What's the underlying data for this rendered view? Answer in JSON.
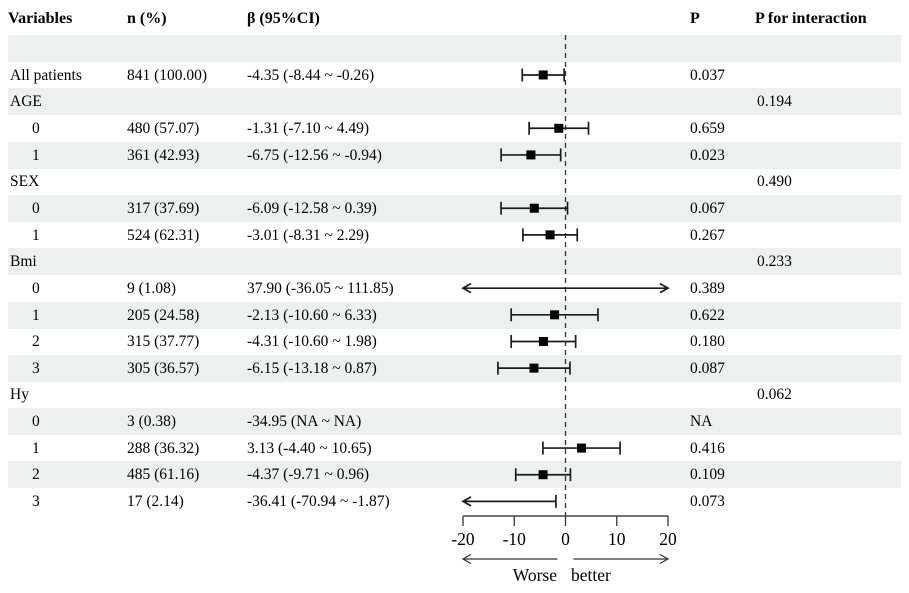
{
  "columns": {
    "variables": "Variables",
    "n": "n (%)",
    "beta": "β (95%CI)",
    "p": "P",
    "p_interaction": "P for interaction"
  },
  "axis": {
    "ticks": [
      -20,
      -10,
      0,
      10,
      20
    ],
    "left_label": "Worse",
    "right_label": "better"
  },
  "colors": {
    "stripe": "#edf1ee",
    "line": "#1c1c1c",
    "dashed_reference": "#333333"
  },
  "chart_data": {
    "type": "forest",
    "title": "",
    "xlabel": "",
    "xlim": [
      -20,
      20
    ],
    "reference_value": 0,
    "legend": "none",
    "direction_labels": {
      "left": "Worse",
      "right": "better"
    },
    "rows": [
      {
        "kind": "spacer"
      },
      {
        "kind": "data",
        "label": "All patients",
        "indent": 0,
        "n": "841 (100.00)",
        "beta": "-4.35 (-8.44 ~ -0.26)",
        "p": "0.037",
        "est": -4.35,
        "lo": -8.44,
        "hi": -0.26
      },
      {
        "kind": "group",
        "label": "AGE",
        "p_interaction": "0.194"
      },
      {
        "kind": "data",
        "label": "0",
        "indent": 1,
        "n": "480 (57.07)",
        "beta": "-1.31 (-7.10 ~ 4.49)",
        "p": "0.659",
        "est": -1.31,
        "lo": -7.1,
        "hi": 4.49
      },
      {
        "kind": "data",
        "label": "1",
        "indent": 1,
        "n": "361 (42.93)",
        "beta": "-6.75 (-12.56 ~ -0.94)",
        "p": "0.023",
        "est": -6.75,
        "lo": -12.56,
        "hi": -0.94
      },
      {
        "kind": "group",
        "label": "SEX",
        "p_interaction": "0.490"
      },
      {
        "kind": "data",
        "label": "0",
        "indent": 1,
        "n": "317 (37.69)",
        "beta": "-6.09 (-12.58 ~ 0.39)",
        "p": "0.067",
        "est": -6.09,
        "lo": -12.58,
        "hi": 0.39
      },
      {
        "kind": "data",
        "label": "1",
        "indent": 1,
        "n": "524 (62.31)",
        "beta": "-3.01 (-8.31 ~ 2.29)",
        "p": "0.267",
        "est": -3.01,
        "lo": -8.31,
        "hi": 2.29
      },
      {
        "kind": "group",
        "label": "Bmi",
        "p_interaction": "0.233"
      },
      {
        "kind": "data",
        "label": "0",
        "indent": 1,
        "n": "9 (1.08)",
        "beta": "37.90 (-36.05 ~ 111.85)",
        "p": "0.389",
        "est": 37.9,
        "lo": -36.05,
        "hi": 111.85
      },
      {
        "kind": "data",
        "label": "1",
        "indent": 1,
        "n": "205 (24.58)",
        "beta": "-2.13 (-10.60 ~ 6.33)",
        "p": "0.622",
        "est": -2.13,
        "lo": -10.6,
        "hi": 6.33
      },
      {
        "kind": "data",
        "label": "2",
        "indent": 1,
        "n": "315 (37.77)",
        "beta": "-4.31 (-10.60 ~ 1.98)",
        "p": "0.180",
        "est": -4.31,
        "lo": -10.6,
        "hi": 1.98
      },
      {
        "kind": "data",
        "label": "3",
        "indent": 1,
        "n": "305 (36.57)",
        "beta": "-6.15 (-13.18 ~ 0.87)",
        "p": "0.087",
        "est": -6.15,
        "lo": -13.18,
        "hi": 0.87
      },
      {
        "kind": "group",
        "label": "Hy",
        "p_interaction": "0.062"
      },
      {
        "kind": "data",
        "label": "0",
        "indent": 1,
        "n": "3 (0.38)",
        "beta": "-34.95 (NA ~ NA)",
        "p": "NA",
        "est": null,
        "lo": null,
        "hi": null
      },
      {
        "kind": "data",
        "label": "1",
        "indent": 1,
        "n": "288 (36.32)",
        "beta": "3.13 (-4.40 ~ 10.65)",
        "p": "0.416",
        "est": 3.13,
        "lo": -4.4,
        "hi": 10.65
      },
      {
        "kind": "data",
        "label": "2",
        "indent": 1,
        "n": "485 (61.16)",
        "beta": "-4.37 (-9.71 ~ 0.96)",
        "p": "0.109",
        "est": -4.37,
        "lo": -9.71,
        "hi": 0.96
      },
      {
        "kind": "data",
        "label": "3",
        "indent": 1,
        "n": "17 (2.14)",
        "beta": "-36.41 (-70.94 ~ -1.87)",
        "p": "0.073",
        "est": -36.41,
        "lo": -70.94,
        "hi": -1.87
      }
    ]
  }
}
